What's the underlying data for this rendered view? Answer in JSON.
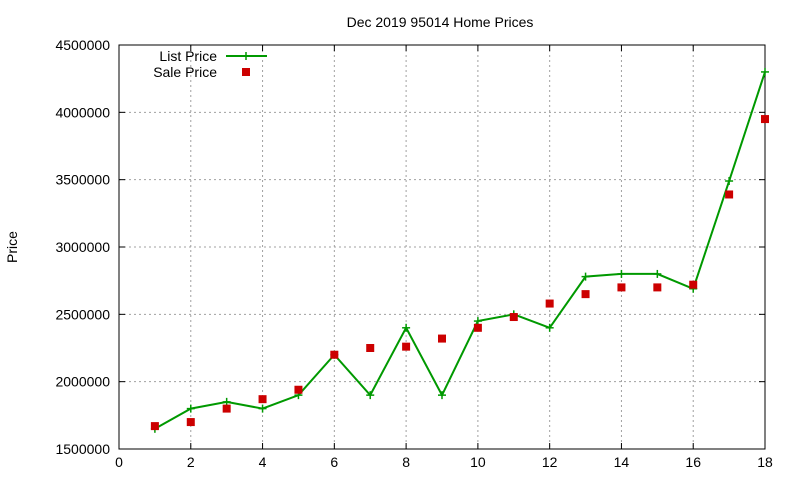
{
  "chart_data": {
    "type": "line",
    "title": "Dec 2019 95014 Home Prices",
    "xlabel": "",
    "ylabel": "Price",
    "xlim": [
      0,
      18
    ],
    "ylim": [
      1500000,
      4500000
    ],
    "xticks": [
      0,
      2,
      4,
      6,
      8,
      10,
      12,
      14,
      16,
      18
    ],
    "yticks": [
      1500000,
      2000000,
      2500000,
      3000000,
      3500000,
      4000000,
      4500000
    ],
    "grid": true,
    "legend_position": "top-left",
    "series": [
      {
        "name": "List Price",
        "style": "linespoints",
        "marker": "plus",
        "color": "#009900",
        "x": [
          1,
          2,
          3,
          4,
          5,
          6,
          7,
          8,
          9,
          10,
          11,
          12,
          13,
          14,
          15,
          16,
          17,
          18
        ],
        "y": [
          1650000,
          1800000,
          1850000,
          1800000,
          1900000,
          2200000,
          1900000,
          2400000,
          1900000,
          2450000,
          2500000,
          2400000,
          2780000,
          2800000,
          2800000,
          2690000,
          3490000,
          4300000
        ]
      },
      {
        "name": "Sale Price",
        "style": "points",
        "marker": "square",
        "color": "#cc0000",
        "x": [
          1,
          2,
          3,
          4,
          5,
          6,
          7,
          8,
          9,
          10,
          11,
          12,
          13,
          14,
          15,
          16,
          17,
          18
        ],
        "y": [
          1670000,
          1700000,
          1800000,
          1870000,
          1940000,
          2200000,
          2250000,
          2260000,
          2320000,
          2400000,
          2480000,
          2580000,
          2650000,
          2700000,
          2700000,
          2720000,
          3390000,
          3950000
        ]
      }
    ]
  }
}
